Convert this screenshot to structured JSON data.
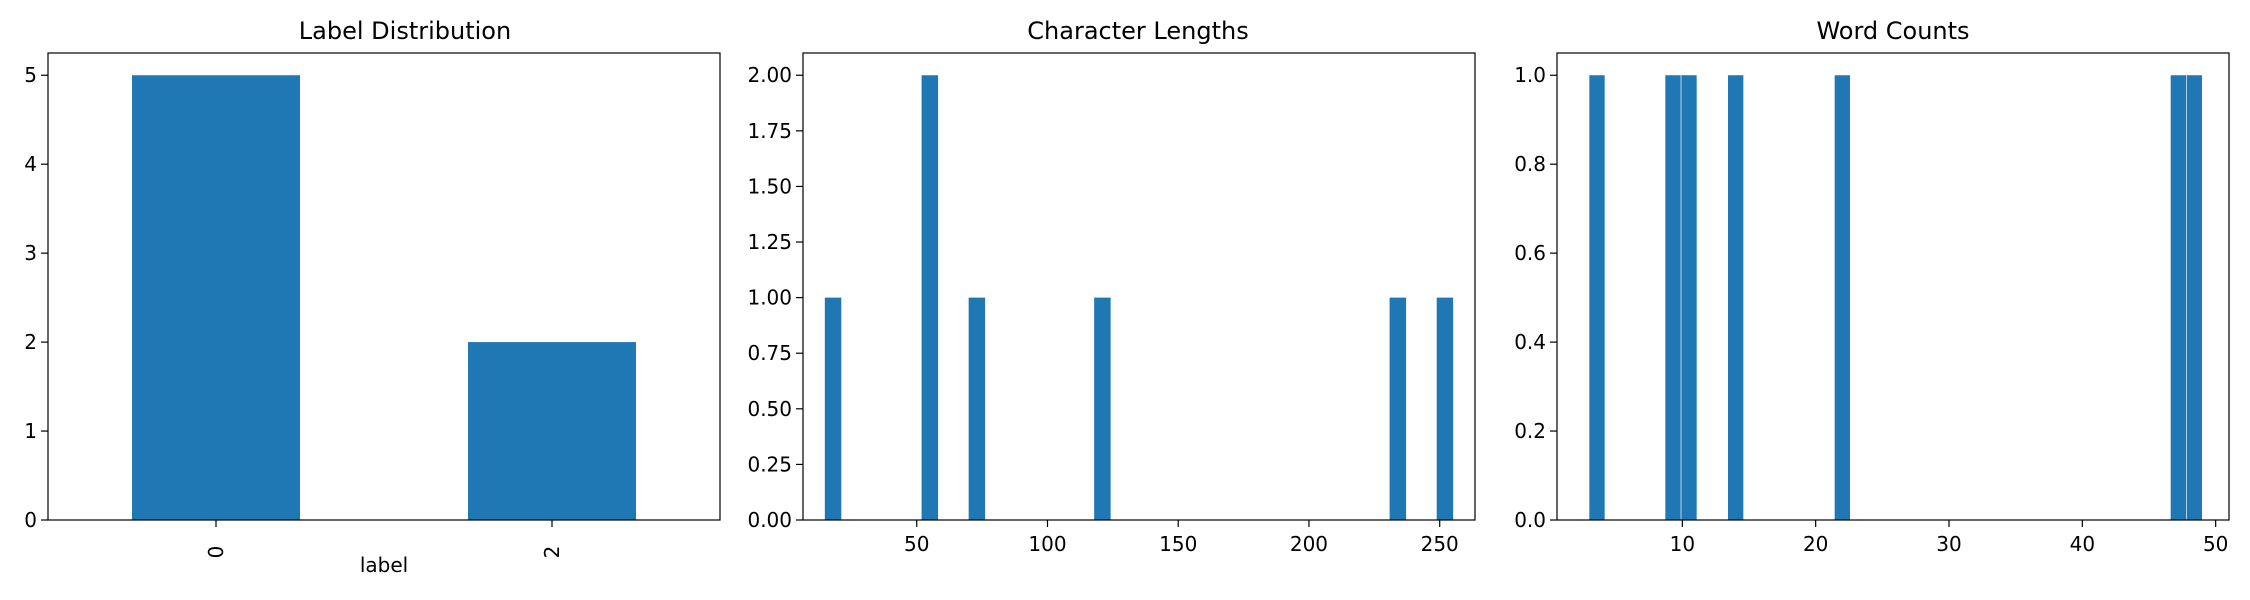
{
  "colors": {
    "bar": "#1f77b4",
    "axis": "#000000",
    "background": "#ffffff"
  },
  "chart_data": [
    {
      "type": "bar",
      "title": "Label Distribution",
      "xlabel": "label",
      "ylabel": "",
      "categories": [
        "0",
        "2"
      ],
      "values": [
        5,
        2
      ],
      "ylim": [
        0,
        5.25
      ],
      "yticks": [
        "0",
        "1",
        "2",
        "3",
        "4",
        "5"
      ],
      "grid": false,
      "legend": "none"
    },
    {
      "type": "bar",
      "title": "Character Lengths",
      "xlabel": "",
      "ylabel": "",
      "bin_width": 6.3,
      "x": [
        18,
        55,
        73,
        121,
        234,
        252
      ],
      "values": [
        1,
        2,
        1,
        1,
        1,
        1
      ],
      "xlim": [
        6.5,
        263.5
      ],
      "ylim": [
        0,
        2.1
      ],
      "xticks": [
        "50",
        "100",
        "150",
        "200",
        "250"
      ],
      "yticks": [
        "0.00",
        "0.25",
        "0.50",
        "0.75",
        "1.00",
        "1.25",
        "1.50",
        "1.75",
        "2.00"
      ],
      "grid": false,
      "legend": "none"
    },
    {
      "type": "bar",
      "title": "Word Counts",
      "xlabel": "",
      "ylabel": "",
      "bin_width": 1.15,
      "x": [
        3.6,
        9.3,
        10.5,
        14.0,
        22.0,
        47.2,
        48.4
      ],
      "values": [
        1,
        1,
        1,
        1,
        1,
        1,
        1
      ],
      "xlim": [
        0.6,
        51.0
      ],
      "ylim": [
        0,
        1.05
      ],
      "xticks": [
        "10",
        "20",
        "30",
        "40",
        "50"
      ],
      "yticks": [
        "0.0",
        "0.2",
        "0.4",
        "0.6",
        "0.8",
        "1.0"
      ],
      "grid": false,
      "legend": "none"
    }
  ]
}
